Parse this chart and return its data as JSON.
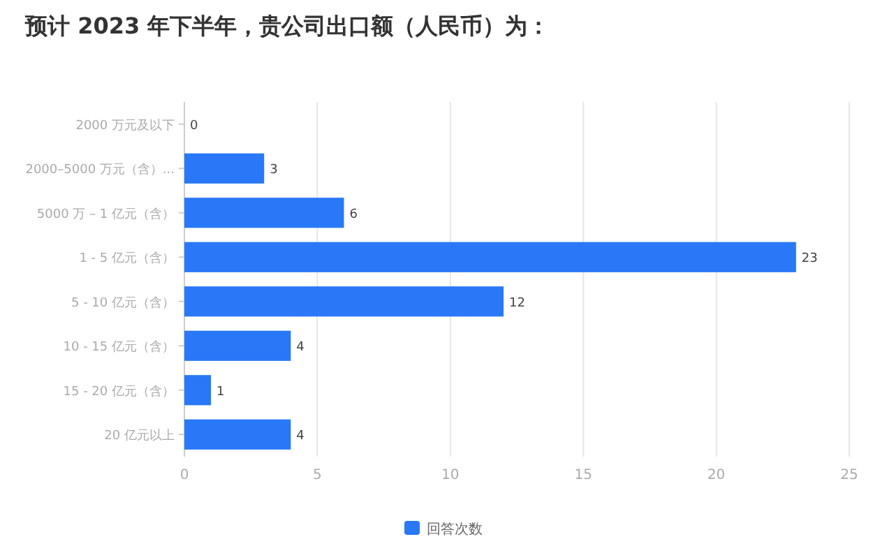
{
  "chart_data": {
    "type": "bar",
    "orientation": "horizontal",
    "title": "预计 2023 年下半年，贵公司出口额（人民币）为：",
    "categories": [
      "2000 万元及以下",
      "2000–5000 万元（含）...",
      "5000 万 – 1 亿元（含）",
      "1 - 5 亿元（含）",
      "5 - 10 亿元（含）",
      "10 - 15 亿元（含）",
      "15 - 20 亿元（含）",
      "20 亿元以上"
    ],
    "series": [
      {
        "name": "回答次数",
        "color": "#2878f8",
        "values": [
          0,
          3,
          6,
          23,
          12,
          4,
          1,
          4
        ]
      }
    ],
    "xlim": [
      0,
      25
    ],
    "xticks": [
      0,
      5,
      10,
      15,
      20,
      25
    ],
    "grid": "x",
    "data_labels": true,
    "legend": "bottom"
  }
}
